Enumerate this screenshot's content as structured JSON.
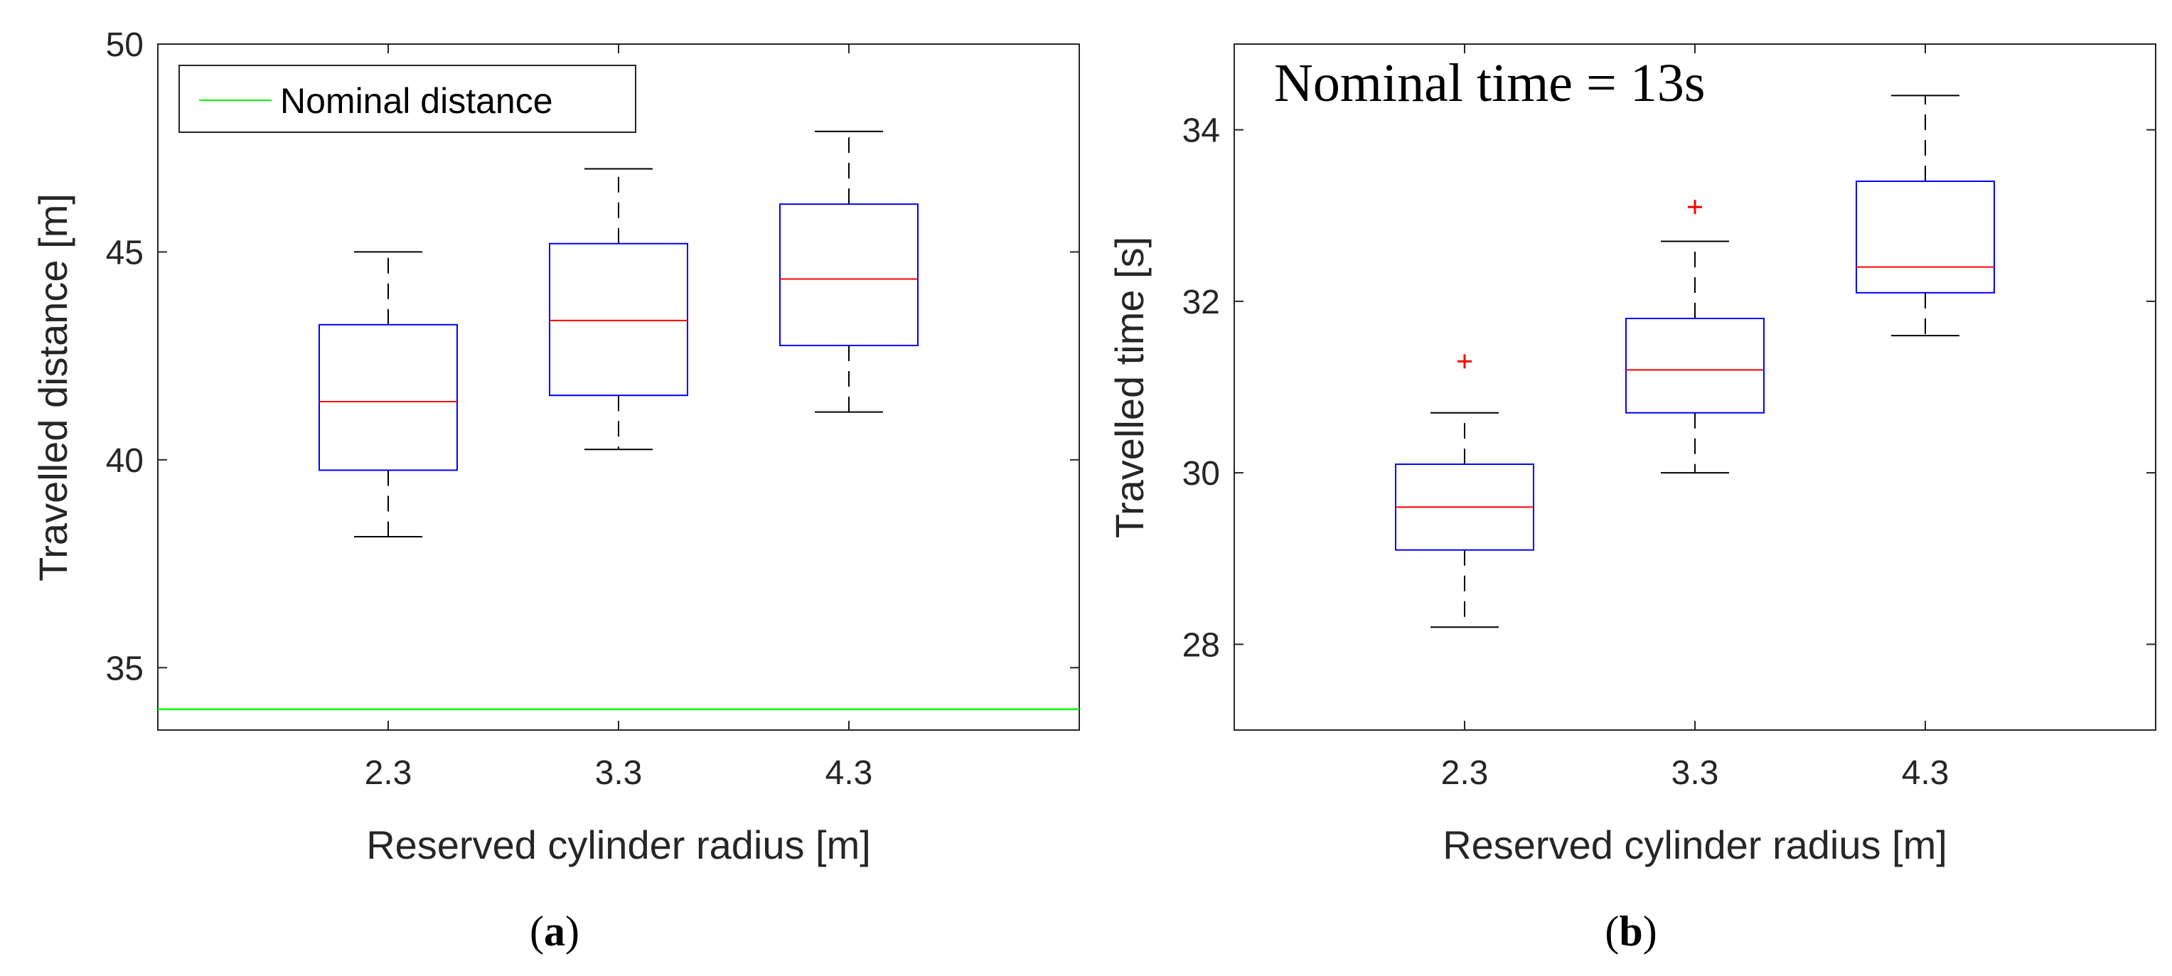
{
  "chart_data": [
    {
      "type": "boxplot",
      "panel_label": {
        "open": "(",
        "letter": "a",
        "close": ")"
      },
      "xlabel": "Reserved cylinder radius [m]",
      "ylabel": "Travelled distance [m]",
      "ylim": [
        33.5,
        50
      ],
      "yticks": [
        35,
        40,
        45,
        50
      ],
      "categories": [
        "2.3",
        "3.3",
        "4.3"
      ],
      "boxes": [
        {
          "category": "2.3",
          "whisker_low": 38.15,
          "q1": 39.75,
          "median": 41.4,
          "q3": 43.25,
          "whisker_high": 45,
          "outliers": []
        },
        {
          "category": "3.3",
          "whisker_low": 40.25,
          "q1": 41.55,
          "median": 43.35,
          "q3": 45.2,
          "whisker_high": 47,
          "outliers": []
        },
        {
          "category": "4.3",
          "whisker_low": 41.15,
          "q1": 42.75,
          "median": 44.35,
          "q3": 46.15,
          "whisker_high": 47.9,
          "outliers": []
        }
      ],
      "reference_line": {
        "value": 34,
        "label": "Nominal distance",
        "color": "#00ff00"
      },
      "legend": {
        "entries": [
          "Nominal distance"
        ],
        "location": "top-left"
      },
      "colors": {
        "box": "#0000ff",
        "median": "#ff0000",
        "whisker": "#000000",
        "outlier": "#ff0000"
      }
    },
    {
      "type": "boxplot",
      "panel_label": {
        "open": "(",
        "letter": "b",
        "close": ")"
      },
      "xlabel": "Reserved cylinder radius [m]",
      "ylabel": "Travelled time [s]",
      "ylim": [
        27,
        35
      ],
      "yticks": [
        28,
        30,
        32,
        34
      ],
      "categories": [
        "2.3",
        "3.3",
        "4.3"
      ],
      "boxes": [
        {
          "category": "2.3",
          "whisker_low": 28.2,
          "q1": 29.1,
          "median": 29.6,
          "q3": 30.1,
          "whisker_high": 30.7,
          "outliers": [
            31.3
          ]
        },
        {
          "category": "3.3",
          "whisker_low": 30.0,
          "q1": 30.7,
          "median": 31.2,
          "q3": 31.8,
          "whisker_high": 32.7,
          "outliers": [
            33.1
          ]
        },
        {
          "category": "4.3",
          "whisker_low": 31.6,
          "q1": 32.1,
          "median": 32.4,
          "q3": 33.4,
          "whisker_high": 34.4,
          "outliers": []
        }
      ],
      "annotation": "Nominal time = 13s",
      "colors": {
        "box": "#0000ff",
        "median": "#ff0000",
        "whisker": "#000000",
        "outlier": "#ff0000"
      }
    }
  ]
}
